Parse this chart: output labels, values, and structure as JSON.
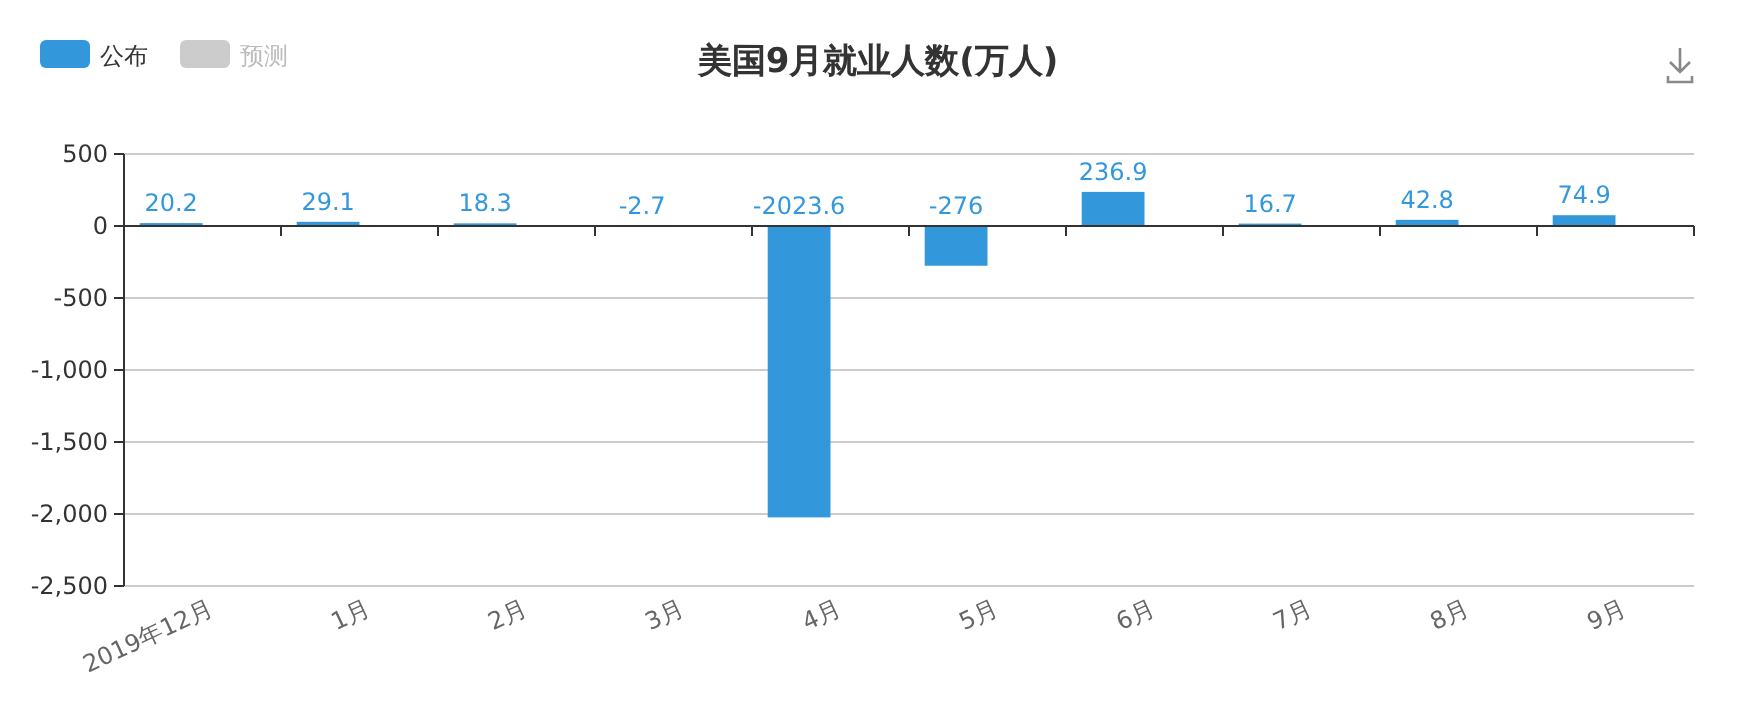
{
  "chart_data": {
    "type": "bar",
    "title": "美国9月就业人数(万人)",
    "categories": [
      "2019年12月",
      "1月",
      "2月",
      "3月",
      "4月",
      "5月",
      "6月",
      "7月",
      "8月",
      "9月"
    ],
    "series": [
      {
        "name": "公布",
        "color": "#3398db",
        "values": [
          20.2,
          29.1,
          18.3,
          -2.7,
          -2023.6,
          -276,
          236.9,
          16.7,
          42.8,
          74.9
        ]
      },
      {
        "name": "预测",
        "color": "#cccccc",
        "values": [
          null,
          null,
          null,
          null,
          null,
          null,
          null,
          null,
          null,
          null
        ]
      }
    ],
    "ylim": [
      -2500,
      500
    ],
    "yticks": [
      500,
      0,
      -500,
      {
        "value": -1000,
        "label": "-1,000"
      },
      {
        "value": -1500,
        "label": "-1,500"
      },
      {
        "value": -2000,
        "label": "-2,000"
      },
      {
        "value": -2500,
        "label": "-2,500"
      }
    ],
    "grid": "y",
    "legend": "top left",
    "data_labels": true
  }
}
